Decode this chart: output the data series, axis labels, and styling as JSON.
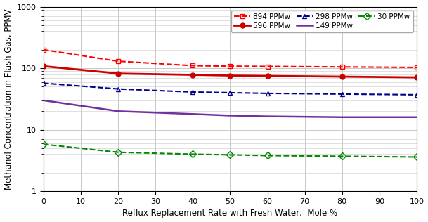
{
  "x": [
    0,
    20,
    40,
    50,
    60,
    80,
    100
  ],
  "series": [
    {
      "label": "894 PPMw",
      "color": "#FF0000",
      "linestyle": "dashed",
      "marker": "s",
      "markerfacecolor": "none",
      "markersize": 5,
      "linewidth": 1.5,
      "y": [
        200,
        130,
        110,
        108,
        107,
        105,
        103
      ]
    },
    {
      "label": "596 PPMw",
      "color": "#CC0000",
      "linestyle": "solid",
      "marker": "o",
      "markerfacecolor": "#CC0000",
      "markersize": 5,
      "linewidth": 2.0,
      "y": [
        108,
        82,
        78,
        76,
        75,
        73,
        71
      ]
    },
    {
      "label": "298 PPMw",
      "color": "#00008B",
      "linestyle": "dashed",
      "marker": "^",
      "markerfacecolor": "none",
      "markersize": 5,
      "linewidth": 1.5,
      "y": [
        57,
        46,
        41,
        40,
        39,
        38,
        37
      ]
    },
    {
      "label": "149 PPMw",
      "color": "#7030A0",
      "linestyle": "solid",
      "marker": null,
      "markerfacecolor": "none",
      "markersize": 0,
      "linewidth": 1.8,
      "y": [
        30,
        20,
        18,
        17,
        16.5,
        16,
        16
      ]
    },
    {
      "label": "30 PPMw",
      "color": "#008800",
      "linestyle": "dashed",
      "marker": "D",
      "markerfacecolor": "none",
      "markersize": 5,
      "linewidth": 1.5,
      "y": [
        5.8,
        4.3,
        4.0,
        3.9,
        3.8,
        3.7,
        3.6
      ]
    }
  ],
  "xlabel": "Reflux Replacement Rate with Fresh Water,  Mole %",
  "ylabel": "Methanol Concentration in Flash Gas, PPMV",
  "ylim": [
    1,
    1000
  ],
  "xlim": [
    0,
    100
  ],
  "xticks": [
    0,
    10,
    20,
    30,
    40,
    50,
    60,
    70,
    80,
    90,
    100
  ],
  "grid_color": "#C8C8C8",
  "background_color": "#FFFFFF",
  "axis_fontsize": 8.5,
  "tick_fontsize": 8,
  "legend_fontsize": 7.5
}
